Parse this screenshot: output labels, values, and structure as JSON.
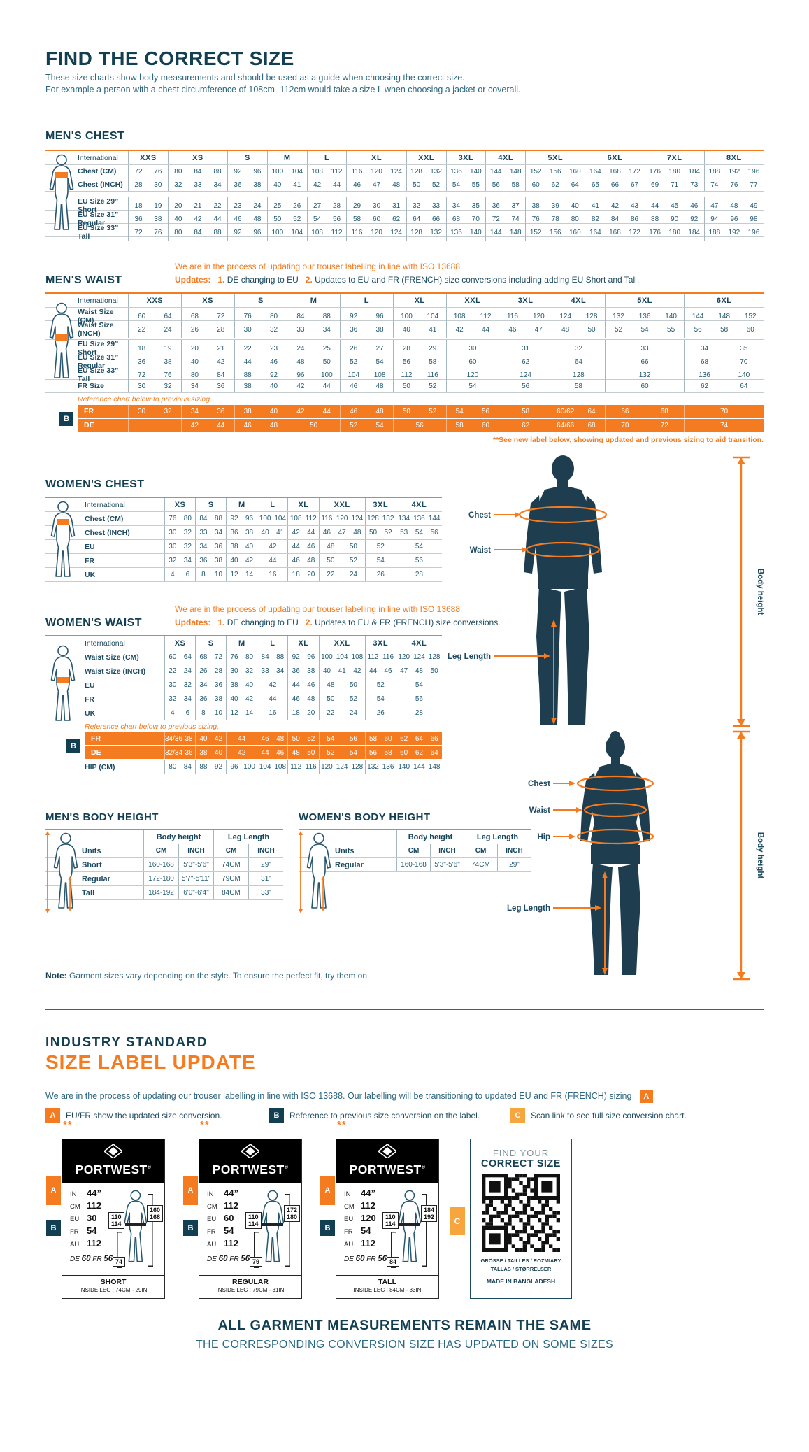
{
  "page": {
    "title": "FIND THE CORRECT SIZE",
    "subtitle1": "These size charts show body measurements and should be used as a guide when choosing the correct size.",
    "subtitle2": "For example a person with a chest circumference of 108cm -112cm would take a size L when choosing a jacket or coverall."
  },
  "colors": {
    "orange": "#F47B20",
    "amber": "#F6A63C",
    "navy": "#133F52",
    "teal": "#2D667F"
  },
  "mens_chest": {
    "title": "MEN'S CHEST",
    "corner_label": "International",
    "sizes": [
      "XXS",
      "XS",
      "S",
      "M",
      "L",
      "XL",
      "XXL",
      "3XL",
      "4XL",
      "5XL",
      "6XL",
      "7XL",
      "8XL"
    ],
    "spans": [
      2,
      3,
      2,
      2,
      2,
      3,
      2,
      2,
      2,
      3,
      3,
      3,
      3
    ],
    "rows": [
      {
        "label": "Chest (CM)",
        "cells": [
          "72 76",
          "80 84 88",
          "92 96",
          "100 104",
          "108 112",
          "116 120 124",
          "128 132",
          "136 140",
          "144 148",
          "152 156 160",
          "164 168 172",
          "176 180 184",
          "188 192 196"
        ]
      },
      {
        "label": "Chest (INCH)",
        "cells": [
          "28 30",
          "32 33 34",
          "36 38",
          "40 41",
          "42 44",
          "46 47 48",
          "50 52",
          "54 55",
          "56 58",
          "60 62 64",
          "65 66 67",
          "69 71 73",
          "74 76 77"
        ]
      },
      {
        "gap": true
      },
      {
        "label": "EU Size 29” Short",
        "cells": [
          "18 19",
          "20 21 22",
          "23 24",
          "25 26",
          "27 28",
          "29 30 31",
          "32 33",
          "34 35",
          "36 37",
          "38 39 40",
          "41 42 43",
          "44 45 46",
          "47 48 49"
        ]
      },
      {
        "label": "EU Size 31” Regular",
        "cells": [
          "36 38",
          "40 42 44",
          "46 48",
          "50 52",
          "54 56",
          "58 60 62",
          "64 66",
          "68 70",
          "72 74",
          "76 78 80",
          "82 84 86",
          "88 90 92",
          "94 96 98"
        ]
      },
      {
        "label": "EU Size 33” Tall",
        "cells": [
          "72 76",
          "80 84 88",
          "92 96",
          "100 104",
          "108 112",
          "116 120 124",
          "128 132",
          "136 140",
          "144 148",
          "152 156 160",
          "164 168 172",
          "176 180 184",
          "188 192 196"
        ]
      }
    ]
  },
  "mens_waist": {
    "title": "MEN'S WAIST",
    "note1": "We are in the process of updating our trouser labelling in line with ISO 13688.",
    "note2_label": "Updates:",
    "note2_n1": "1.",
    "note2_t1": "DE changing to EU",
    "note2_n2": "2.",
    "note2_t2": "Updates to EU and FR (FRENCH) size conversions including adding EU Short and Tall.",
    "corner_label": "International",
    "sizes": [
      "XXS",
      "XS",
      "S",
      "M",
      "L",
      "XL",
      "XXL",
      "3XL",
      "4XL",
      "5XL",
      "6XL"
    ],
    "spans": [
      2,
      2,
      2,
      2,
      2,
      2,
      2,
      2,
      2,
      3,
      3
    ],
    "rows": [
      {
        "label": "Waist Size (CM)",
        "cells": [
          "60 64",
          "68 72",
          "76 80",
          "84 88",
          "92 96",
          "100 104",
          "108 112",
          "116 120",
          "124 128",
          "132 136 140",
          "144 148 152"
        ]
      },
      {
        "label": "Waist Size (INCH)",
        "cells": [
          "22 24",
          "26 28",
          "30 32",
          "33 34",
          "36 38",
          "40 41",
          "42 44",
          "46 47",
          "48 50",
          "52 54 55",
          "56 58 60"
        ]
      },
      {
        "gap": true
      },
      {
        "label": "EU Size 29” Short",
        "cells": [
          "18 19",
          "20 21",
          "22 23",
          "24 25",
          "26 27",
          "28 29",
          "30",
          "31",
          "32",
          "33",
          "34 35"
        ]
      },
      {
        "label": "EU Size 31” Regular",
        "cells": [
          "36 38",
          "40 42",
          "44 46",
          "48 50",
          "52 54",
          "56 58",
          "60",
          "62",
          "64",
          "66",
          "68 70"
        ]
      },
      {
        "label": "EU Size 33” Tall",
        "cells": [
          "72 76",
          "80 84",
          "88 92",
          "96 100",
          "104 108",
          "112 116",
          "120",
          "124",
          "128",
          "132",
          "136 140"
        ]
      },
      {
        "label": "FR Size",
        "cells": [
          "30 32",
          "34 36",
          "38 40",
          "42 44",
          "46 48",
          "50 52",
          "54",
          "56",
          "58",
          "60",
          "62 64"
        ]
      }
    ],
    "ref_note": "Reference chart below to previous sizing.",
    "ref_badge": "B",
    "ref_rows": [
      {
        "label": "FR",
        "cells": [
          "30 32",
          "34 36",
          "38 40",
          "42 44",
          "46 48",
          "50 52",
          "54 56",
          "58",
          "60/62 64",
          "66 68",
          "70"
        ]
      },
      {
        "label": "DE",
        "cells": [
          "",
          "42 44",
          "46 48",
          "50",
          "52 54",
          "56",
          "58 60",
          "62",
          "64/66 68",
          "70 72",
          "74"
        ]
      }
    ],
    "footnote": "**See new label below, showing updated and previous sizing to aid transition."
  },
  "womens_chest": {
    "title": "WOMEN'S CHEST",
    "corner_label": "International",
    "sizes": [
      "XS",
      "S",
      "M",
      "L",
      "XL",
      "XXL",
      "3XL",
      "4XL"
    ],
    "spans": [
      2,
      2,
      2,
      2,
      2,
      3,
      2,
      3
    ],
    "rows": [
      {
        "label": "Chest (CM)",
        "cells": [
          "76 80",
          "84 88",
          "92 96",
          "100 104",
          "108 112",
          "116 120 124",
          "128 132",
          "134 136 144"
        ]
      },
      {
        "label": "Chest (INCH)",
        "cells": [
          "30 32",
          "33 34",
          "36 38",
          "40 41",
          "42 44",
          "46 47 48",
          "50 52",
          "53 54 56"
        ]
      },
      {
        "label": "EU",
        "cells": [
          "30 32",
          "34 36",
          "38 40",
          "42",
          "44 46",
          "48 50",
          "52",
          "54"
        ]
      },
      {
        "label": "FR",
        "cells": [
          "32 34",
          "36 38",
          "40 42",
          "44",
          "46 48",
          "50 52",
          "54",
          "56"
        ]
      },
      {
        "label": "UK",
        "cells": [
          "4 6",
          "8 10",
          "12 14",
          "16",
          "18 20",
          "22 24",
          "26",
          "28"
        ]
      }
    ]
  },
  "womens_waist": {
    "title": "WOMEN'S WAIST",
    "note1": "We are in the process of updating our trouser labelling in line with ISO 13688.",
    "note2_label": "Updates:",
    "note2_n1": "1.",
    "note2_t1": "DE changing to EU",
    "note2_n2": "2.",
    "note2_t2": "Updates to EU & FR (FRENCH) size conversions.",
    "corner_label": "International",
    "sizes": [
      "XS",
      "S",
      "M",
      "L",
      "XL",
      "XXL",
      "3XL",
      "4XL"
    ],
    "spans": [
      2,
      2,
      2,
      2,
      2,
      3,
      2,
      3
    ],
    "rows": [
      {
        "label": "Waist Size (CM)",
        "cells": [
          "60 64",
          "68 72",
          "76 80",
          "84 88",
          "92 96",
          "100 104 108",
          "112 116",
          "120 124 128"
        ]
      },
      {
        "label": "Waist Size (INCH)",
        "cells": [
          "22 24",
          "26 28",
          "30 32",
          "33 34",
          "36 38",
          "40 41 42",
          "44 46",
          "47 48 50"
        ]
      },
      {
        "label": "EU",
        "cells": [
          "30 32",
          "34 36",
          "38 40",
          "42",
          "44 46",
          "48 50",
          "52",
          "54"
        ]
      },
      {
        "label": "FR",
        "cells": [
          "32 34",
          "36 38",
          "40 42",
          "44",
          "46 48",
          "50 52",
          "54",
          "56"
        ]
      },
      {
        "label": "UK",
        "cells": [
          "4 6",
          "8 10",
          "12 14",
          "16",
          "18 20",
          "22 24",
          "26",
          "28"
        ]
      }
    ],
    "ref_note": "Reference chart below to previous sizing.",
    "ref_badge": "B",
    "ref_rows": [
      {
        "label": "FR",
        "cells": [
          "34/36 38",
          "40 42",
          "44",
          "46 48",
          "50 52",
          "54 56",
          "58 60",
          "62 64 66"
        ]
      },
      {
        "label": "DE",
        "cells": [
          "32/34 36",
          "38 40",
          "42",
          "44 46",
          "48 50",
          "52 54",
          "56 58",
          "60 62 64"
        ]
      }
    ],
    "rows_after_ref": [
      {
        "label": "HIP (CM)",
        "cells": [
          "80 84",
          "88 92",
          "96 100",
          "104 108",
          "112 116",
          "120 124 128",
          "132 136",
          "140 144 148"
        ]
      }
    ]
  },
  "mens_body_height": {
    "title": "MEN'S BODY HEIGHT",
    "group_headers": [
      "Body height",
      "Leg Length"
    ],
    "units_label": "Units",
    "unit_cols": [
      "CM",
      "INCH",
      "CM",
      "INCH"
    ],
    "rows": [
      {
        "label": "Short",
        "cells": [
          "160-168",
          "5'3\"-5'6\"",
          "74CM",
          "29\""
        ]
      },
      {
        "label": "Regular",
        "cells": [
          "172-180",
          "5'7\"-5'11\"",
          "79CM",
          "31\""
        ]
      },
      {
        "label": "Tall",
        "cells": [
          "184-192",
          "6'0\"-6'4\"",
          "84CM",
          "33\""
        ]
      }
    ]
  },
  "womens_body_height": {
    "title": "WOMEN'S BODY HEIGHT",
    "group_headers": [
      "Body height",
      "Leg Length"
    ],
    "units_label": "Units",
    "unit_cols": [
      "CM",
      "INCH",
      "CM",
      "INCH"
    ],
    "rows": [
      {
        "label": "Regular",
        "cells": [
          "160-168",
          "5'3\"-5'6\"",
          "74CM",
          "29\""
        ]
      }
    ]
  },
  "diagram_men": {
    "chest": "Chest",
    "waist": "Waist",
    "leg": "Leg Length",
    "height": "Body height"
  },
  "diagram_women": {
    "chest": "Chest",
    "waist": "Waist",
    "hip": "Hip",
    "leg": "Leg Length",
    "height": "Body height"
  },
  "note": {
    "bold": "Note:",
    "text": " Garment sizes vary depending on the style. To ensure the perfect fit, try them on."
  },
  "update_section": {
    "heading1": "INDUSTRY STANDARD",
    "heading2": "SIZE LABEL UPDATE",
    "intro": "We are in the process of updating our trouser labelling in line with ISO 13688. Our labelling will be transitioning to updated EU and FR (FRENCH) sizing",
    "intro_badge": "A",
    "legend": [
      {
        "badge": "A",
        "text": "EU/FR show the updated size conversion."
      },
      {
        "badge": "B",
        "text": "Reference to previous size conversion on the label."
      },
      {
        "badge": "C",
        "text": "Scan link to see full size conversion chart."
      }
    ],
    "stars": "**",
    "cards": [
      {
        "brand": "PORTWEST",
        "reg": "®",
        "l1": "IN",
        "v1": "44”",
        "l2": "CM",
        "v2": "112",
        "l3": "EU",
        "v3": "30",
        "l4": "FR",
        "v4": "54",
        "l5": "AU",
        "v5": "112",
        "de_l": "DE",
        "de_v": "60",
        "fr_l": "FR",
        "fr_v": "56",
        "waist1": "110",
        "waist2": "114",
        "h1": "160",
        "h2": "168",
        "inseam": "74",
        "fit": "SHORT",
        "leg": "INSIDE LEG : 74CM - 29IN"
      },
      {
        "brand": "PORTWEST",
        "reg": "®",
        "l1": "IN",
        "v1": "44”",
        "l2": "CM",
        "v2": "112",
        "l3": "EU",
        "v3": "60",
        "l4": "FR",
        "v4": "54",
        "l5": "AU",
        "v5": "112",
        "de_l": "DE",
        "de_v": "60",
        "fr_l": "FR",
        "fr_v": "56",
        "waist1": "110",
        "waist2": "114",
        "h1": "172",
        "h2": "180",
        "inseam": "79",
        "fit": "REGULAR",
        "leg": "INSIDE LEG : 79CM - 31IN"
      },
      {
        "brand": "PORTWEST",
        "reg": "®",
        "l1": "IN",
        "v1": "44”",
        "l2": "CM",
        "v2": "112",
        "l3": "EU",
        "v3": "120",
        "l4": "FR",
        "v4": "54",
        "l5": "AU",
        "v5": "112",
        "de_l": "DE",
        "de_v": "60",
        "fr_l": "FR",
        "fr_v": "56",
        "waist1": "110",
        "waist2": "114",
        "h1": "184",
        "h2": "192",
        "inseam": "84",
        "fit": "TALL",
        "leg": "INSIDE LEG : 84CM - 33IN"
      }
    ],
    "qr_card": {
      "badge": "C",
      "line1": "FIND YOUR",
      "line2": "CORRECT SIZE",
      "langs1": "GRÖSSE / TAILLES / ROZMIARY",
      "langs2": "TALLAS / STØRRELSER",
      "made": "MADE IN BANGLADESH"
    }
  },
  "footer": {
    "line1": "ALL GARMENT MEASUREMENTS REMAIN THE SAME",
    "line2": "THE CORRESPONDING CONVERSION SIZE HAS UPDATED ON SOME SIZES"
  }
}
